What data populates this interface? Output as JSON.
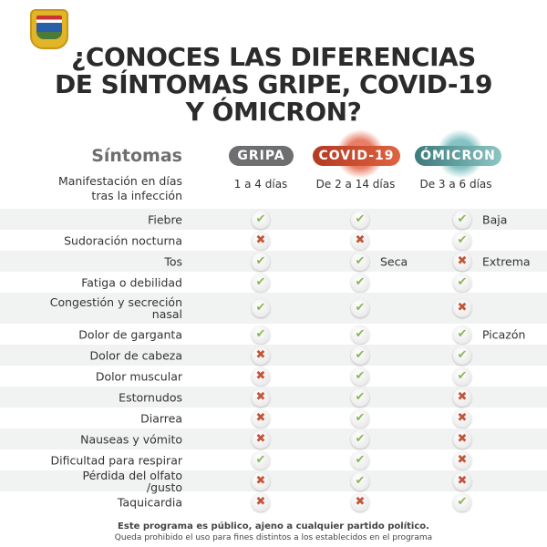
{
  "title": [
    "¿CONOCES LAS DIFERENCIAS",
    "DE SÍNTOMAS GRIPE, COVID-19",
    "Y ÓMICRON?"
  ],
  "header": {
    "symptoms": "Síntomas",
    "manifestation": "Manifestación en días tras la infección"
  },
  "columns": [
    {
      "name": "GRIPA",
      "days": "1 a 4 días",
      "color": "#6d6e70"
    },
    {
      "name": "COVID-19",
      "days": "De 2 a 14 días",
      "color": "#c9432b"
    },
    {
      "name": "ÓMICRON",
      "days": "De 3 a 6 días",
      "color": "#4a9a9c"
    }
  ],
  "icons": {
    "yes": "check-icon",
    "no": "cross-icon",
    "yes_color": "#8cb55a",
    "no_color": "#c2553a"
  },
  "rows": [
    {
      "label": "Fiebre",
      "gripa": true,
      "covid": true,
      "omicron": true,
      "omicron_note": "Baja"
    },
    {
      "label": "Sudoración nocturna",
      "gripa": false,
      "covid": false,
      "omicron": true
    },
    {
      "label": "Tos",
      "gripa": true,
      "covid": true,
      "covid_note": "Seca",
      "omicron": false,
      "omicron_note": "Extrema"
    },
    {
      "label": "Fatiga o debilidad",
      "gripa": true,
      "covid": true,
      "omicron": true
    },
    {
      "label": "Congestión y secreción nasal",
      "gripa": true,
      "covid": true,
      "omicron": false
    },
    {
      "label": "Dolor de garganta",
      "gripa": true,
      "covid": true,
      "omicron": true,
      "omicron_note": "Picazón"
    },
    {
      "label": "Dolor de cabeza",
      "gripa": false,
      "covid": true,
      "omicron": true
    },
    {
      "label": "Dolor muscular",
      "gripa": false,
      "covid": true,
      "omicron": true
    },
    {
      "label": "Estornudos",
      "gripa": false,
      "covid": true,
      "omicron": false
    },
    {
      "label": "Diarrea",
      "gripa": false,
      "covid": true,
      "omicron": false
    },
    {
      "label": "Nauseas y vómito",
      "gripa": false,
      "covid": true,
      "omicron": false
    },
    {
      "label": "Dificultad para respirar",
      "gripa": true,
      "covid": true,
      "omicron": false
    },
    {
      "label": "Pérdida del olfato /gusto",
      "gripa": false,
      "covid": true,
      "omicron": false
    },
    {
      "label": "Taquicardia",
      "gripa": false,
      "covid": false,
      "omicron": true
    }
  ],
  "footer": {
    "line1": "Este programa es público, ajeno a cualquier partido político.",
    "line2": "Queda prohibido el uso para fines distintos a los establecidos en el programa"
  }
}
